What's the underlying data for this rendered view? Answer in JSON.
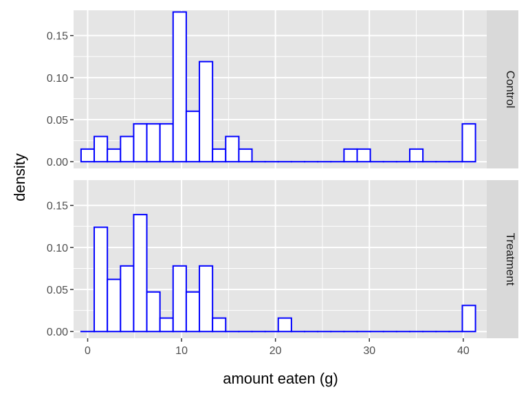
{
  "chart_data": {
    "type": "bar",
    "xlabel": "amount eaten (g)",
    "ylabel": "density",
    "xlim": [
      -1.5,
      42.5
    ],
    "ylim": [
      -0.008,
      0.18
    ],
    "x_ticks": [
      0,
      10,
      20,
      30,
      40
    ],
    "x_tick_labels": [
      "0",
      "10",
      "20",
      "30",
      "40"
    ],
    "y_ticks": [
      0,
      0.05,
      0.1,
      0.15
    ],
    "y_tick_labels": [
      "0.00",
      "0.05",
      "0.10",
      "0.15"
    ],
    "bin_width": 1.4,
    "bin_start": -0.7,
    "grid": true,
    "colors": {
      "bar_outline": "#0000ff",
      "bar_fill": "#ffffff",
      "panel_bg": "#e5e5e5",
      "grid": "#ffffff",
      "strip_bg": "#d9d9d9"
    },
    "facets": [
      {
        "label": "Control",
        "values": [
          0.015,
          0.03,
          0.015,
          0.03,
          0.045,
          0.045,
          0.045,
          0.178,
          0.06,
          0.119,
          0.015,
          0.03,
          0.015,
          0,
          0,
          0,
          0,
          0,
          0,
          0,
          0.015,
          0.015,
          0,
          0,
          0,
          0.015,
          0,
          0,
          0,
          0.045
        ]
      },
      {
        "label": "Treatment",
        "values": [
          0,
          0.124,
          0.062,
          0.078,
          0.139,
          0.047,
          0.016,
          0.078,
          0.047,
          0.078,
          0.016,
          0,
          0,
          0,
          0,
          0.016,
          0,
          0,
          0,
          0,
          0,
          0,
          0,
          0,
          0,
          0,
          0,
          0,
          0,
          0.031
        ]
      }
    ]
  }
}
